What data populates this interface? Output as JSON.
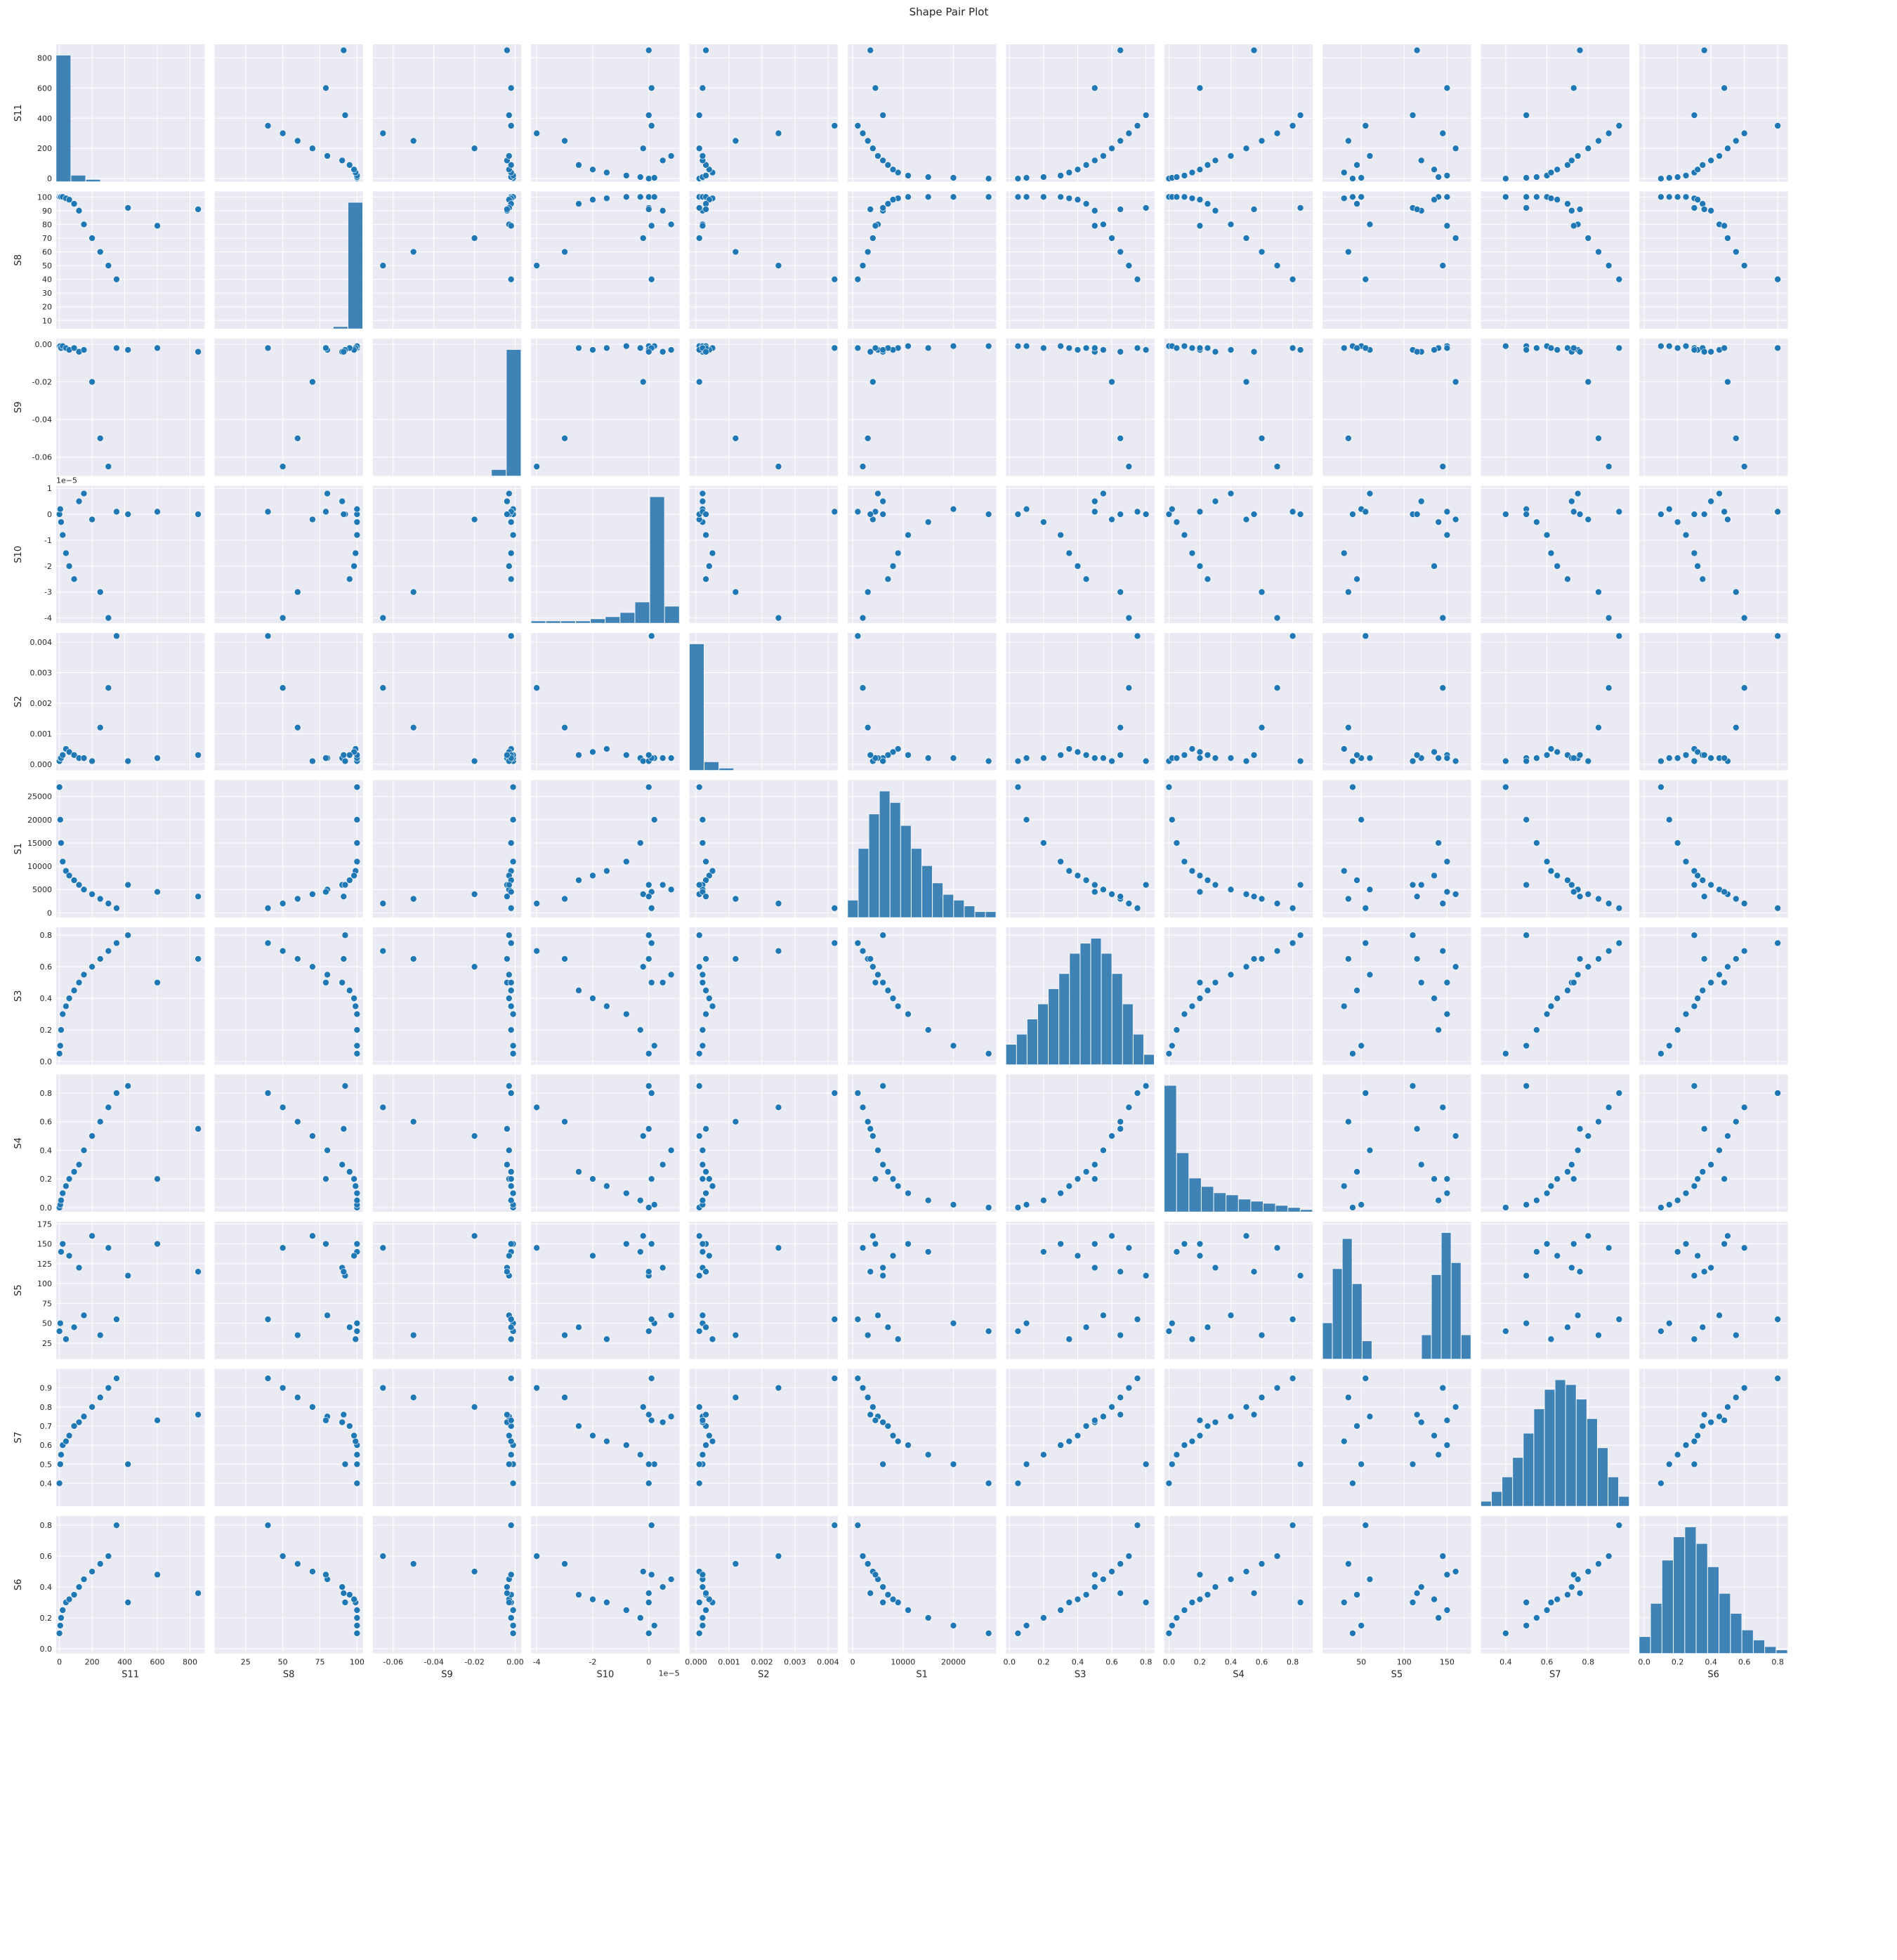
{
  "title": "Shape Pair Plot",
  "chart_data": {
    "type": "scatter",
    "kind": "pairplot",
    "title": "Shape Pair Plot",
    "diagonal": "histogram",
    "grid": true,
    "colors": {
      "background": "#eaeaf2",
      "grid": "#ffffff",
      "point": "#1f77b4",
      "point_edge": "#ffffff",
      "histogram": "#3f82b6",
      "text": "#262626"
    },
    "variables": [
      {
        "name": "S11",
        "range": [
          -20,
          890
        ],
        "ticks": [
          0,
          200,
          400,
          600,
          800
        ],
        "tick_labels": [
          "0",
          "200",
          "400",
          "600",
          "800"
        ],
        "offset_label": ""
      },
      {
        "name": "S8",
        "range": [
          4,
          104
        ],
        "ticks": [
          10,
          20,
          30,
          40,
          50,
          60,
          70,
          80,
          90,
          100
        ],
        "tick_labels": [
          "10",
          "20",
          "30",
          "40",
          "50",
          "60",
          "70",
          "80",
          "90",
          "100"
        ],
        "x_ticks": [
          25,
          50,
          75,
          100
        ],
        "x_tick_labels": [
          "25",
          "50",
          "75",
          "100"
        ],
        "offset_label": ""
      },
      {
        "name": "S9",
        "range": [
          -0.07,
          0.003
        ],
        "ticks": [
          -0.06,
          -0.04,
          -0.02,
          0.0
        ],
        "tick_labels": [
          "-0.06",
          "-0.04",
          "-0.02",
          "0.00"
        ],
        "offset_label": ""
      },
      {
        "name": "S10",
        "range": [
          -4.2,
          1.1
        ],
        "ticks": [
          -4,
          -3,
          -2,
          -1,
          0,
          1
        ],
        "tick_labels": [
          "-4",
          "-3",
          "-2",
          "-1",
          "0",
          "1"
        ],
        "x_ticks": [
          -4,
          -2,
          0
        ],
        "x_tick_labels": [
          "-4",
          "-2",
          "0"
        ],
        "offset_label": "1e−5"
      },
      {
        "name": "S2",
        "range": [
          -0.0002,
          0.0043
        ],
        "ticks": [
          0,
          0.001,
          0.002,
          0.003,
          0.004
        ],
        "tick_labels": [
          "0.000",
          "0.001",
          "0.002",
          "0.003",
          "0.004"
        ],
        "offset_label": ""
      },
      {
        "name": "S1",
        "range": [
          -1000,
          28500
        ],
        "ticks": [
          0,
          5000,
          10000,
          15000,
          20000,
          25000
        ],
        "tick_labels": [
          "0",
          "5000",
          "10000",
          "15000",
          "20000",
          "25000"
        ],
        "x_ticks": [
          0,
          10000,
          20000
        ],
        "x_tick_labels": [
          "0",
          "10000",
          "20000"
        ],
        "offset_label": ""
      },
      {
        "name": "S3",
        "range": [
          -0.02,
          0.85
        ],
        "ticks": [
          0,
          0.2,
          0.4,
          0.6,
          0.8
        ],
        "tick_labels": [
          "0.0",
          "0.2",
          "0.4",
          "0.6",
          "0.8"
        ],
        "offset_label": ""
      },
      {
        "name": "S4",
        "range": [
          -0.03,
          0.93
        ],
        "ticks": [
          0,
          0.2,
          0.4,
          0.6,
          0.8
        ],
        "tick_labels": [
          "0.0",
          "0.2",
          "0.4",
          "0.6",
          "0.8"
        ],
        "offset_label": ""
      },
      {
        "name": "S5",
        "range": [
          5,
          178
        ],
        "ticks": [
          25,
          50,
          75,
          100,
          125,
          150,
          175
        ],
        "tick_labels": [
          "25",
          "50",
          "75",
          "100",
          "125",
          "150",
          "175"
        ],
        "x_ticks": [
          50,
          100,
          150
        ],
        "x_tick_labels": [
          "50",
          "100",
          "150"
        ],
        "offset_label": ""
      },
      {
        "name": "S7",
        "range": [
          0.28,
          1.0
        ],
        "ticks": [
          0.4,
          0.5,
          0.6,
          0.7,
          0.8,
          0.9
        ],
        "tick_labels": [
          "0.4",
          "0.5",
          "0.6",
          "0.7",
          "0.8",
          "0.9"
        ],
        "x_ticks": [
          0.4,
          0.6,
          0.8
        ],
        "x_tick_labels": [
          "0.4",
          "0.6",
          "0.8"
        ],
        "offset_label": ""
      },
      {
        "name": "S6",
        "range": [
          -0.03,
          0.86
        ],
        "ticks": [
          0,
          0.2,
          0.4,
          0.6,
          0.8
        ],
        "tick_labels": [
          "0.0",
          "0.2",
          "0.4",
          "0.6",
          "0.8"
        ],
        "offset_label": ""
      }
    ],
    "points": {
      "S11": [
        0,
        5,
        10,
        20,
        40,
        60,
        90,
        120,
        150,
        200,
        250,
        300,
        350,
        420,
        600,
        850
      ],
      "S8": [
        100,
        100,
        100,
        100,
        99,
        98,
        95,
        90,
        80,
        70,
        60,
        50,
        40,
        92,
        79,
        91
      ],
      "S9": [
        -0.001,
        -0.001,
        -0.002,
        -0.001,
        -0.002,
        -0.003,
        -0.002,
        -0.004,
        -0.003,
        -0.02,
        -0.05,
        -0.065,
        -0.002,
        -0.003,
        -0.002,
        -0.004
      ],
      "S10": [
        0.0,
        0.2,
        -0.3,
        -0.8,
        -1.5,
        -2.0,
        -2.5,
        0.5,
        0.8,
        -0.2,
        -3.0,
        -4.0,
        0.1,
        0.0,
        0.1,
        0.0
      ],
      "S2": [
        0.0001,
        0.0002,
        0.0002,
        0.0003,
        0.0005,
        0.0004,
        0.0003,
        0.0002,
        0.0002,
        0.0001,
        0.0012,
        0.0025,
        0.0042,
        0.0001,
        0.0002,
        0.0003
      ],
      "S1": [
        27000,
        20000,
        15000,
        11000,
        9000,
        8000,
        7000,
        6000,
        5000,
        4000,
        3000,
        2000,
        1000,
        6000,
        4500,
        3500
      ],
      "S3": [
        0.05,
        0.1,
        0.2,
        0.3,
        0.35,
        0.4,
        0.45,
        0.5,
        0.55,
        0.6,
        0.65,
        0.7,
        0.75,
        0.8,
        0.5,
        0.65
      ],
      "S4": [
        0.0,
        0.02,
        0.05,
        0.1,
        0.15,
        0.2,
        0.25,
        0.3,
        0.4,
        0.5,
        0.6,
        0.7,
        0.8,
        0.85,
        0.2,
        0.55
      ],
      "S5": [
        40,
        50,
        140,
        150,
        30,
        135,
        45,
        120,
        60,
        160,
        35,
        145,
        55,
        110,
        150,
        115
      ],
      "S7": [
        0.4,
        0.5,
        0.55,
        0.6,
        0.62,
        0.65,
        0.7,
        0.72,
        0.75,
        0.8,
        0.85,
        0.9,
        0.95,
        0.5,
        0.73,
        0.76
      ],
      "S6": [
        0.1,
        0.15,
        0.2,
        0.25,
        0.3,
        0.32,
        0.35,
        0.4,
        0.45,
        0.5,
        0.55,
        0.6,
        0.8,
        0.3,
        0.48,
        0.36
      ]
    },
    "histograms": {
      "S11": [
        60,
        3,
        1,
        0,
        0,
        0,
        0,
        0,
        0,
        0
      ],
      "S8": [
        0,
        0,
        0,
        0,
        0,
        0,
        0,
        0,
        1,
        60
      ],
      "S9": [
        0,
        0,
        0,
        0,
        0,
        0,
        0,
        0,
        3,
        60
      ],
      "S10": [
        1,
        1,
        1,
        1,
        2,
        3,
        5,
        10,
        60,
        8
      ],
      "S2": [
        60,
        4,
        1,
        0,
        0,
        0,
        0,
        0,
        0,
        0
      ],
      "S1": [
        3,
        12,
        18,
        22,
        20,
        16,
        12,
        9,
        6,
        4,
        3,
        2,
        1,
        1
      ],
      "S3": [
        4,
        6,
        9,
        12,
        15,
        18,
        22,
        24,
        25,
        22,
        18,
        12,
        6,
        2
      ],
      "S4": [
        60,
        28,
        16,
        12,
        9,
        8,
        6,
        5,
        4,
        3,
        2,
        1
      ],
      "S5": [
        12,
        30,
        40,
        25,
        6,
        0,
        0,
        0,
        0,
        0,
        8,
        28,
        42,
        32,
        8
      ],
      "S7": [
        1,
        3,
        6,
        10,
        15,
        20,
        24,
        26,
        25,
        22,
        18,
        12,
        6,
        2
      ],
      "S6": [
        5,
        15,
        28,
        35,
        38,
        33,
        26,
        18,
        12,
        7,
        4,
        2,
        1
      ]
    }
  }
}
